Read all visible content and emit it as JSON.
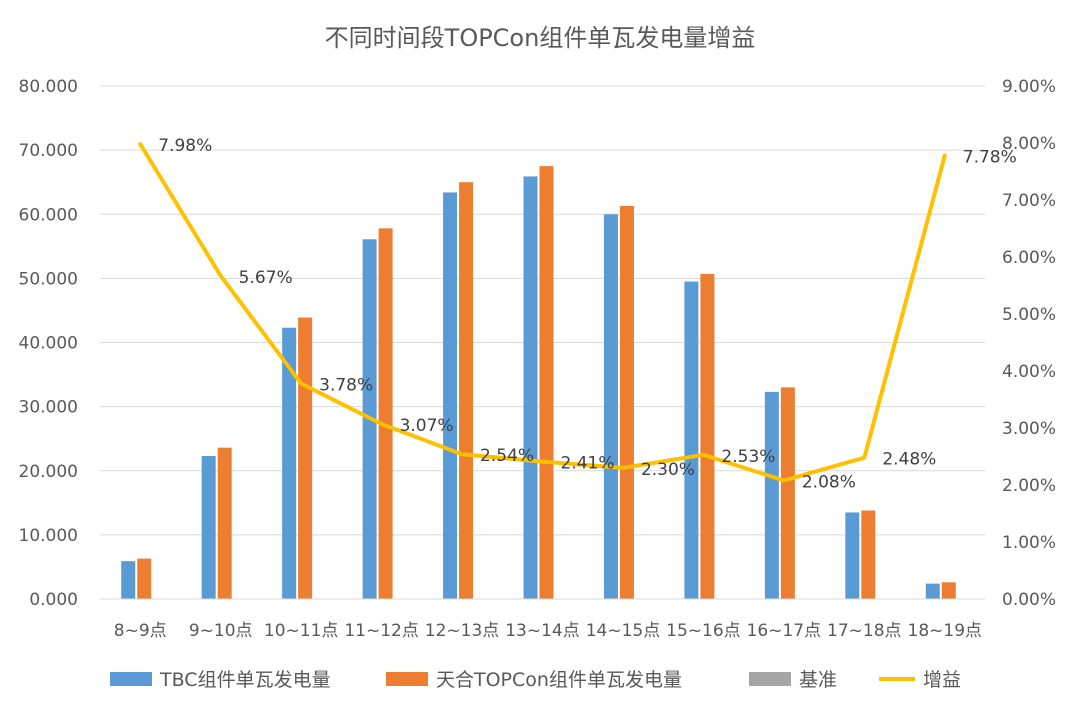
{
  "chart_data": {
    "type": "bar",
    "title": "不同时间段TOPCon组件单瓦发电量增益",
    "categories": [
      "8~9点",
      "9~10点",
      "10~11点",
      "11~12点",
      "12~13点",
      "13~14点",
      "14~15点",
      "15~16点",
      "16~17点",
      "17~18点",
      "18~19点"
    ],
    "y_left": {
      "ylim": [
        0,
        80
      ],
      "ticks": [
        "0.000",
        "10.000",
        "20.000",
        "30.000",
        "40.000",
        "50.000",
        "60.000",
        "70.000",
        "80.000"
      ]
    },
    "y_right": {
      "ylim": [
        0,
        9
      ],
      "ticks": [
        "0.00%",
        "1.00%",
        "2.00%",
        "3.00%",
        "4.00%",
        "5.00%",
        "6.00%",
        "7.00%",
        "8.00%",
        "9.00%"
      ]
    },
    "series": [
      {
        "name": "TBC组件单瓦发电量",
        "type": "bar",
        "axis": "left",
        "color": "#5B9BD5",
        "values": [
          5.9,
          22.3,
          42.3,
          56.1,
          63.4,
          65.9,
          60.0,
          49.5,
          32.3,
          13.5,
          2.4
        ]
      },
      {
        "name": "天合TOPCon组件单瓦发电量",
        "type": "bar",
        "axis": "left",
        "color": "#ED7D31",
        "values": [
          6.3,
          23.6,
          43.9,
          57.8,
          65.0,
          67.5,
          61.3,
          50.7,
          33.0,
          13.8,
          2.6
        ]
      },
      {
        "name": "基准",
        "type": "bar",
        "axis": "left",
        "color": "#A5A5A5",
        "values": [
          0,
          0,
          0,
          0,
          0,
          0,
          0,
          0,
          0,
          0,
          0
        ]
      },
      {
        "name": "增益",
        "type": "line",
        "axis": "right",
        "color": "#FFC000",
        "values": [
          7.98,
          5.67,
          3.78,
          3.07,
          2.54,
          2.41,
          2.3,
          2.53,
          2.08,
          2.48,
          7.78
        ],
        "labels": [
          "7.98%",
          "5.67%",
          "3.78%",
          "3.07%",
          "2.54%",
          "2.41%",
          "2.30%",
          "2.53%",
          "2.08%",
          "2.48%",
          "7.78%"
        ]
      }
    ],
    "grid": true,
    "legend": "bottom"
  }
}
